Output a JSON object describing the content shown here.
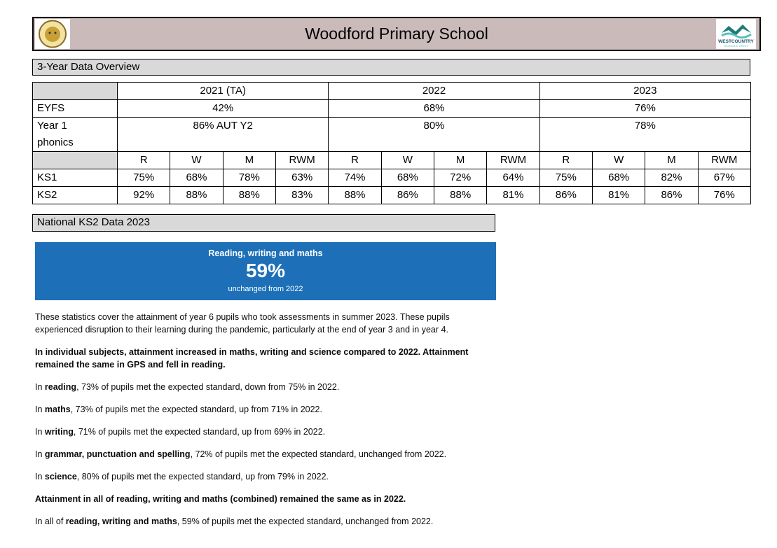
{
  "header": {
    "title": "Woodford Primary School",
    "right_logo": {
      "line1": "WESTCOUNTRY",
      "line2": "SCHOOLS TRUST"
    }
  },
  "sections": [
    "3-Year Data Overview",
    "National KS2 Data 2023"
  ],
  "table": {
    "year_headers": [
      "2021 (TA)",
      "2022",
      "2023"
    ],
    "summary_rows": [
      {
        "label": "EYFS",
        "values": [
          "42%",
          "68%",
          "76%"
        ]
      },
      {
        "label": "Year 1 phonics",
        "values": [
          "86% AUT Y2",
          "80%",
          "78%"
        ]
      }
    ],
    "subject_headers": [
      "R",
      "W",
      "M",
      "RWM",
      "R",
      "W",
      "M",
      "RWM",
      "R",
      "W",
      "M",
      "RWM"
    ],
    "subject_rows": [
      {
        "label": "KS1",
        "values": [
          "75%",
          "68%",
          "78%",
          "63%",
          "74%",
          "68%",
          "72%",
          "64%",
          "75%",
          "68%",
          "82%",
          "67%"
        ]
      },
      {
        "label": "KS2",
        "values": [
          "92%",
          "88%",
          "88%",
          "83%",
          "88%",
          "86%",
          "88%",
          "81%",
          "86%",
          "81%",
          "86%",
          "76%"
        ]
      }
    ]
  },
  "callout": {
    "heading": "Reading, writing and maths",
    "value": "59%",
    "note": "unchanged from 2022"
  },
  "paragraphs": [
    [
      {
        "text": "These statistics cover the attainment of year 6 pupils who took assessments in summer 2023. These pupils experienced disruption to their learning during the pandemic, particularly at the end of year 3 and in year 4.",
        "bold": false
      }
    ],
    [
      {
        "text": "In individual subjects, attainment increased in maths, writing and science compared to 2022. Attainment remained the same in GPS and fell in reading.",
        "bold": true
      }
    ],
    [
      {
        "text": "In ",
        "bold": false
      },
      {
        "text": "reading",
        "bold": true
      },
      {
        "text": ", 73% of pupils met the expected standard, down from 75% in 2022.",
        "bold": false
      }
    ],
    [
      {
        "text": "In ",
        "bold": false
      },
      {
        "text": "maths",
        "bold": true
      },
      {
        "text": ", 73% of pupils met the expected standard, up from 71% in 2022.",
        "bold": false
      }
    ],
    [
      {
        "text": "In ",
        "bold": false
      },
      {
        "text": "writing",
        "bold": true
      },
      {
        "text": ", 71% of pupils met the expected standard, up from 69% in 2022.",
        "bold": false
      }
    ],
    [
      {
        "text": "In ",
        "bold": false
      },
      {
        "text": "grammar, punctuation and spelling",
        "bold": true
      },
      {
        "text": ", 72% of pupils met the expected standard, unchanged from 2022.",
        "bold": false
      }
    ],
    [
      {
        "text": "In ",
        "bold": false
      },
      {
        "text": "science",
        "bold": true
      },
      {
        "text": ", 80% of pupils met the expected standard, up from 79% in 2022.",
        "bold": false
      }
    ],
    [
      {
        "text": "Attainment in all of reading, writing and maths (combined) remained the same as in 2022.",
        "bold": true
      }
    ],
    [
      {
        "text": "In all of ",
        "bold": false
      },
      {
        "text": "reading, writing and maths",
        "bold": true
      },
      {
        "text": ", 59% of pupils met the expected standard, unchanged from 2022.",
        "bold": false
      }
    ]
  ]
}
